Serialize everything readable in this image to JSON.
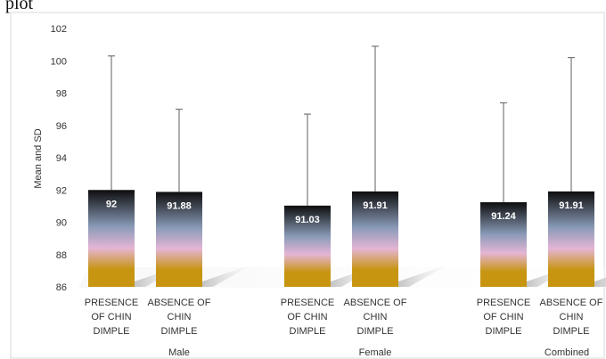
{
  "caption": "plot",
  "chart_data": {
    "type": "bar",
    "ylabel": "Mean and SD",
    "ylim": [
      86,
      102
    ],
    "yticks": [
      86,
      88,
      90,
      92,
      94,
      96,
      98,
      100,
      102
    ],
    "grid": false,
    "legend": "none",
    "groups": [
      {
        "name": "Male",
        "bars": [
          {
            "label": [
              "PRESENCE",
              "OF CHIN",
              "DIMPLE"
            ],
            "value": 92,
            "value_label": "92",
            "err_top": 100.3
          },
          {
            "label": [
              "ABSENCE OF",
              "CHIN",
              "DIMPLE"
            ],
            "value": 91.88,
            "value_label": "91.88",
            "err_top": 97.0
          }
        ]
      },
      {
        "name": "Female",
        "bars": [
          {
            "label": [
              "PRESENCE",
              "OF CHIN",
              "DIMPLE"
            ],
            "value": 91.03,
            "value_label": "91.03",
            "err_top": 96.7
          },
          {
            "label": [
              "ABSENCE OF",
              "CHIN",
              "DIMPLE"
            ],
            "value": 91.91,
            "value_label": "91.91",
            "err_top": 100.9
          }
        ]
      },
      {
        "name": "Combined",
        "bars": [
          {
            "label": [
              "PRESENCE",
              "OF CHIN",
              "DIMPLE"
            ],
            "value": 91.24,
            "value_label": "91.24",
            "err_top": 97.4
          },
          {
            "label": [
              "ABSENCE OF",
              "CHIN",
              "DIMPLE"
            ],
            "value": 91.91,
            "value_label": "91.91",
            "err_top": 100.2
          }
        ]
      }
    ],
    "colors": {
      "top": "#0d0d0d",
      "upper": "#8a9bb8",
      "middle": "#e5b5d5",
      "bottom": "#c79510"
    }
  }
}
